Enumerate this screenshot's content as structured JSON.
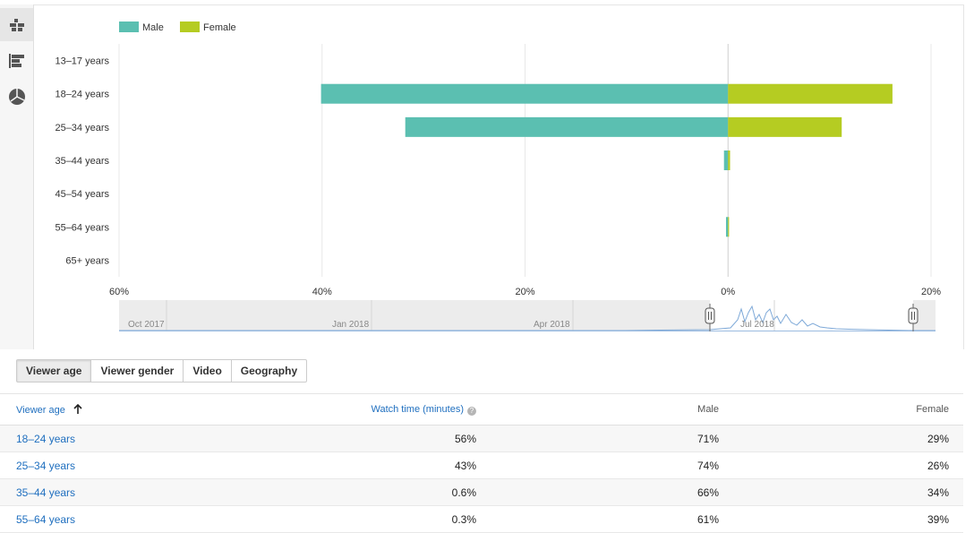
{
  "sidebar": {
    "items": [
      {
        "icon": "pyramid-chart-icon",
        "active": true
      },
      {
        "icon": "bar-chart-icon",
        "active": false
      },
      {
        "icon": "pie-chart-icon",
        "active": false
      }
    ]
  },
  "chart_data": {
    "type": "bar",
    "orientation": "horizontal-diverging",
    "categories": [
      "13–17 years",
      "18–24 years",
      "25–34 years",
      "35–44 years",
      "45–54 years",
      "55–64 years",
      "65+ years"
    ],
    "series": [
      {
        "name": "Male",
        "color": "#5bbfb1",
        "values": [
          0,
          40.1,
          31.8,
          0.4,
          0,
          0.2,
          0
        ]
      },
      {
        "name": "Female",
        "color": "#b5cc22",
        "values": [
          0,
          16.2,
          11.2,
          0.2,
          0,
          0.1,
          0
        ]
      }
    ],
    "xlim": [
      -60,
      20
    ],
    "x_ticks": [
      -60,
      -40,
      -20,
      0,
      20
    ],
    "x_tick_labels": [
      "60%",
      "40%",
      "20%",
      "0%",
      "20%"
    ],
    "grid": true,
    "legend_position": "top-left"
  },
  "timeline": {
    "labels": [
      "Oct 2017",
      "Jan 2018",
      "Apr 2018",
      "Jul 2018"
    ]
  },
  "view_tabs": [
    {
      "label": "Viewer age",
      "active": true
    },
    {
      "label": "Viewer gender",
      "active": false
    },
    {
      "label": "Video",
      "active": false
    },
    {
      "label": "Geography",
      "active": false
    }
  ],
  "table": {
    "headers": {
      "viewer_age": "Viewer age",
      "sort_icon": "arrow-up-icon",
      "watch_time": "Watch time (minutes)",
      "male": "Male",
      "female": "Female"
    },
    "rows": [
      {
        "age": "18–24 years",
        "watch_time": "56%",
        "male": "71%",
        "female": "29%"
      },
      {
        "age": "25–34 years",
        "watch_time": "43%",
        "male": "74%",
        "female": "26%"
      },
      {
        "age": "35–44 years",
        "watch_time": "0.6%",
        "male": "66%",
        "female": "34%"
      },
      {
        "age": "55–64 years",
        "watch_time": "0.3%",
        "male": "61%",
        "female": "39%"
      }
    ]
  }
}
